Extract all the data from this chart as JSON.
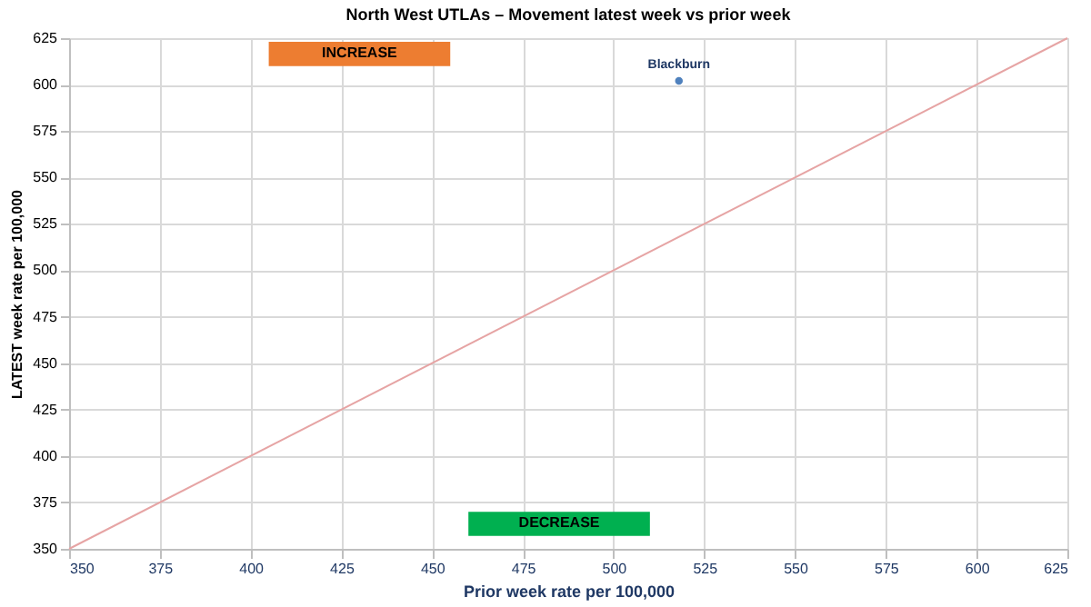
{
  "chart_data": {
    "type": "scatter",
    "title": "North West UTLAs – Movement latest week vs prior week",
    "xlabel": "Prior week rate per 100,000",
    "ylabel": "LATEST week rate per 100,000",
    "series": [
      {
        "name": "Blackburn",
        "color": "#4f81bd",
        "x": [
          518
        ],
        "values": [
          602
        ],
        "marker": "circle"
      },
      {
        "type": "line",
        "color": "#e6a4a4",
        "x": [
          350,
          625
        ],
        "values": [
          350,
          625
        ],
        "line_style": "solid"
      }
    ],
    "annotations": [
      "INCREASE",
      "DECREASE"
    ],
    "xlim": [
      350,
      625
    ],
    "ylim": [
      350,
      625
    ],
    "xticks": [
      350,
      375,
      400,
      425,
      450,
      475,
      500,
      525,
      550,
      575,
      600,
      625
    ],
    "yticks": [
      350,
      375,
      400,
      425,
      450,
      475,
      500,
      525,
      550,
      575,
      600,
      625
    ],
    "grid": true,
    "legend": false
  }
}
